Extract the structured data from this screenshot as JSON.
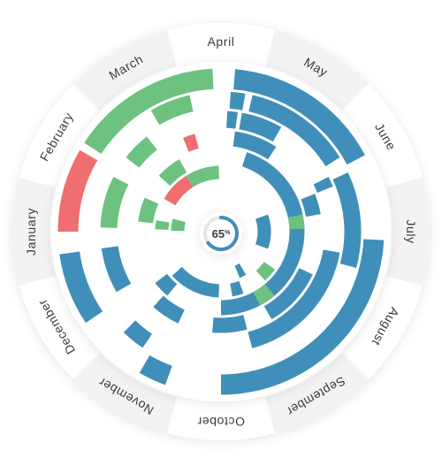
{
  "chart_data": {
    "type": "radial-bar",
    "months": [
      "January",
      "February",
      "March",
      "April",
      "May",
      "June",
      "July",
      "August",
      "September",
      "October",
      "November",
      "December"
    ],
    "center": {
      "value": "65",
      "unit": "%",
      "progress": 0.65
    },
    "colors": {
      "blue": "#3f8fba",
      "green": "#6cc27e",
      "red": "#f06e70",
      "ring": "#f4f4f4",
      "track": "#e6e6e6",
      "progress": "#3f8fba"
    },
    "arcs": [
      {
        "start": 270,
        "end": 300,
        "ring": 7,
        "color": "red"
      },
      {
        "start": 272,
        "end": 297,
        "ring": 5,
        "color": "green"
      },
      {
        "start": 277,
        "end": 294,
        "ring": 3,
        "color": "green"
      },
      {
        "start": 272,
        "end": 280,
        "ring": 2,
        "color": "green"
      },
      {
        "start": 271,
        "end": 285,
        "ring": 1,
        "color": "green"
      },
      {
        "start": 303,
        "end": 357,
        "ring": 7,
        "color": "green"
      },
      {
        "start": 308,
        "end": 322,
        "ring": 5,
        "color": "green"
      },
      {
        "start": 330,
        "end": 347,
        "ring": 6,
        "color": "green"
      },
      {
        "start": 312,
        "end": 330,
        "ring": 3,
        "color": "green"
      },
      {
        "start": 300,
        "end": 328,
        "ring": 2,
        "color": "red"
      },
      {
        "start": 328,
        "end": 358,
        "ring": 2,
        "color": "green"
      },
      {
        "start": 338,
        "end": 345,
        "ring": 4,
        "color": "red"
      },
      {
        "start": 5,
        "end": 62,
        "ring": 7,
        "color": "blue"
      },
      {
        "start": 4,
        "end": 10,
        "ring": 6,
        "color": "blue"
      },
      {
        "start": 13,
        "end": 58,
        "ring": 6,
        "color": "blue"
      },
      {
        "start": 3,
        "end": 8,
        "ring": 5,
        "color": "blue"
      },
      {
        "start": 10,
        "end": 30,
        "ring": 5,
        "color": "blue"
      },
      {
        "start": 8,
        "end": 33,
        "ring": 4,
        "color": "blue"
      },
      {
        "start": 18,
        "end": 180,
        "ring": 3,
        "color": "blue"
      },
      {
        "start": 63,
        "end": 68,
        "ring": 5,
        "color": "blue"
      },
      {
        "start": 68,
        "end": 80,
        "ring": 4,
        "color": "blue"
      },
      {
        "start": 78,
        "end": 88,
        "ring": 3,
        "color": "green"
      },
      {
        "start": 65,
        "end": 105,
        "ring": 6,
        "color": "blue"
      },
      {
        "start": 70,
        "end": 110,
        "ring": 1,
        "color": "blue"
      },
      {
        "start": 93,
        "end": 180,
        "ring": 7,
        "color": "blue"
      },
      {
        "start": 100,
        "end": 165,
        "ring": 5,
        "color": "blue"
      },
      {
        "start": 115,
        "end": 150,
        "ring": 4,
        "color": "blue"
      },
      {
        "start": 125,
        "end": 138,
        "ring": 2,
        "color": "green"
      },
      {
        "start": 140,
        "end": 152,
        "ring": 3,
        "color": "green"
      },
      {
        "start": 150,
        "end": 158,
        "ring": 1,
        "color": "blue"
      },
      {
        "start": 160,
        "end": 170,
        "ring": 2,
        "color": "blue"
      },
      {
        "start": 165,
        "end": 185,
        "ring": 4,
        "color": "blue"
      },
      {
        "start": 182,
        "end": 228,
        "ring": 2,
        "color": "blue"
      },
      {
        "start": 205,
        "end": 222,
        "ring": 4,
        "color": "blue"
      },
      {
        "start": 200,
        "end": 210,
        "ring": 7,
        "color": "blue"
      },
      {
        "start": 214,
        "end": 224,
        "ring": 6,
        "color": "blue"
      },
      {
        "start": 220,
        "end": 232,
        "ring": 3,
        "color": "blue"
      },
      {
        "start": 236,
        "end": 262,
        "ring": 7,
        "color": "blue"
      },
      {
        "start": 240,
        "end": 262,
        "ring": 5,
        "color": "blue"
      }
    ]
  }
}
